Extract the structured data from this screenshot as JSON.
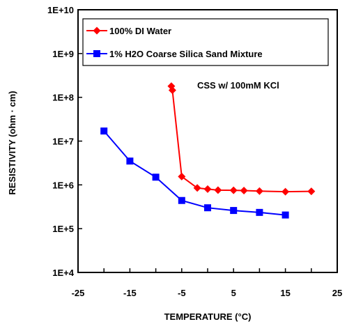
{
  "chart_data": {
    "type": "line",
    "title": "",
    "xlabel": "TEMPERATURE (°C)",
    "ylabel": "RESISTIVITY (ohm · cm)",
    "xlim": [
      -25,
      25
    ],
    "ylim": [
      10000,
      10000000000
    ],
    "y_scale": "log",
    "x_ticks": [
      -25,
      -15,
      -5,
      5,
      15,
      25
    ],
    "x_tick_labels": [
      "-25",
      "-15",
      "-5",
      "5",
      "15",
      "25"
    ],
    "y_ticks": [
      10000,
      100000,
      1000000,
      10000000,
      100000000,
      1000000000,
      10000000000
    ],
    "y_tick_labels": [
      "1E+4",
      "1E+5",
      "1E+6",
      "1E+7",
      "1E+8",
      "1E+9",
      "1E+10"
    ],
    "grid": false,
    "legend_position": "top-left",
    "annotation": "CSS w/ 100mM KCl",
    "series": [
      {
        "name": "100% DI Water",
        "color": "#ff0000",
        "marker": "diamond",
        "x": [
          -7,
          -6.8,
          -5,
          -2,
          0,
          2,
          5,
          7,
          10,
          15,
          20
        ],
        "y": [
          180000000,
          145000000,
          1550000,
          850000,
          800000,
          760000,
          750000,
          740000,
          720000,
          700000,
          710000
        ]
      },
      {
        "name": "1% H2O Coarse Silica Sand Mixture",
        "color": "#0000ff",
        "marker": "square",
        "x": [
          -20,
          -15,
          -10,
          -5,
          0,
          5,
          10,
          15
        ],
        "y": [
          17000000,
          3500000,
          1500000,
          440000,
          300000,
          260000,
          235000,
          205000
        ]
      }
    ]
  }
}
